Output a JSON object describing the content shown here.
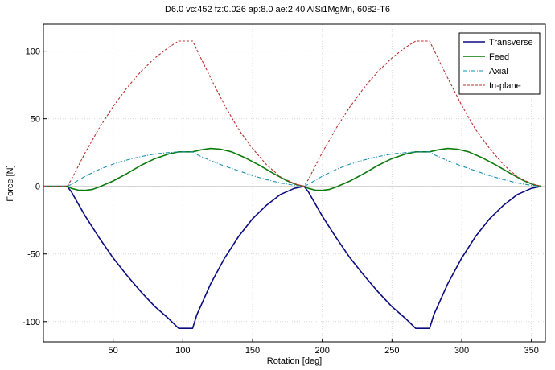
{
  "chart_data": {
    "type": "line",
    "title": "D6.0 vc:452 fz:0.026 ap:8.0 ae:2.40 AlSi1MgMn, 6082-T6",
    "xlabel": "Rotation [deg]",
    "ylabel": "Force [N]",
    "xlim": [
      0,
      360
    ],
    "ylim": [
      -115,
      120
    ],
    "xticks": [
      50,
      100,
      150,
      200,
      250,
      300,
      350
    ],
    "yticks": [
      -100,
      -50,
      0,
      50,
      100
    ],
    "grid": true,
    "legend_position": "top-right",
    "series": [
      {
        "name": "Transverse",
        "color": "#0b0b80",
        "style": "solid",
        "points": [
          [
            0,
            0
          ],
          [
            17,
            0
          ],
          [
            20,
            -4
          ],
          [
            30,
            -22
          ],
          [
            40,
            -38
          ],
          [
            50,
            -53
          ],
          [
            60,
            -66
          ],
          [
            70,
            -78
          ],
          [
            80,
            -89
          ],
          [
            90,
            -98
          ],
          [
            97,
            -105
          ],
          [
            107,
            -105
          ],
          [
            110,
            -95
          ],
          [
            120,
            -72
          ],
          [
            130,
            -53
          ],
          [
            140,
            -37
          ],
          [
            150,
            -24
          ],
          [
            160,
            -14
          ],
          [
            170,
            -6
          ],
          [
            180,
            -1.5
          ],
          [
            187,
            0
          ],
          [
            190,
            -4
          ],
          [
            200,
            -22
          ],
          [
            210,
            -38
          ],
          [
            220,
            -53
          ],
          [
            230,
            -66
          ],
          [
            240,
            -78
          ],
          [
            250,
            -89
          ],
          [
            260,
            -98
          ],
          [
            267,
            -105
          ],
          [
            277,
            -105
          ],
          [
            280,
            -95
          ],
          [
            290,
            -72
          ],
          [
            300,
            -53
          ],
          [
            310,
            -37
          ],
          [
            320,
            -24
          ],
          [
            330,
            -14
          ],
          [
            340,
            -6
          ],
          [
            350,
            -1.5
          ],
          [
            357,
            0
          ]
        ]
      },
      {
        "name": "Feed",
        "color": "#0a7a0a",
        "style": "solid",
        "points": [
          [
            0,
            0
          ],
          [
            17,
            0
          ],
          [
            20,
            -1.5
          ],
          [
            25,
            -2.8
          ],
          [
            30,
            -3
          ],
          [
            35,
            -2.3
          ],
          [
            40,
            -0.5
          ],
          [
            50,
            4
          ],
          [
            60,
            9.5
          ],
          [
            70,
            15.5
          ],
          [
            80,
            20.5
          ],
          [
            90,
            24
          ],
          [
            97,
            25.5
          ],
          [
            107,
            25.5
          ],
          [
            113,
            27
          ],
          [
            120,
            28
          ],
          [
            127,
            27.5
          ],
          [
            135,
            25.5
          ],
          [
            145,
            21
          ],
          [
            155,
            15.5
          ],
          [
            165,
            9.5
          ],
          [
            175,
            4
          ],
          [
            182,
            1
          ],
          [
            187,
            0
          ],
          [
            190,
            -1.5
          ],
          [
            195,
            -2.8
          ],
          [
            200,
            -3
          ],
          [
            205,
            -2.3
          ],
          [
            210,
            -0.5
          ],
          [
            220,
            4
          ],
          [
            230,
            9.5
          ],
          [
            240,
            15.5
          ],
          [
            250,
            20.5
          ],
          [
            260,
            24
          ],
          [
            267,
            25.5
          ],
          [
            277,
            25.5
          ],
          [
            283,
            27
          ],
          [
            290,
            28
          ],
          [
            297,
            27.5
          ],
          [
            305,
            25.5
          ],
          [
            315,
            21
          ],
          [
            325,
            15.5
          ],
          [
            335,
            9.5
          ],
          [
            345,
            4
          ],
          [
            352,
            1
          ],
          [
            357,
            0
          ]
        ]
      },
      {
        "name": "Axial",
        "color": "#1a8fb0",
        "style": "dashdot",
        "points": [
          [
            0,
            0
          ],
          [
            17,
            0
          ],
          [
            20,
            1.5
          ],
          [
            30,
            7.5
          ],
          [
            40,
            12.5
          ],
          [
            50,
            16.5
          ],
          [
            60,
            19.5
          ],
          [
            70,
            22
          ],
          [
            80,
            24
          ],
          [
            90,
            25
          ],
          [
            97,
            25.5
          ],
          [
            107,
            25.5
          ],
          [
            110,
            23.5
          ],
          [
            120,
            19
          ],
          [
            130,
            15
          ],
          [
            140,
            11.5
          ],
          [
            150,
            8
          ],
          [
            160,
            5
          ],
          [
            170,
            2.5
          ],
          [
            180,
            0.8
          ],
          [
            187,
            0
          ],
          [
            190,
            1.5
          ],
          [
            200,
            7.5
          ],
          [
            210,
            12.5
          ],
          [
            220,
            16.5
          ],
          [
            230,
            19.5
          ],
          [
            240,
            22
          ],
          [
            250,
            24
          ],
          [
            260,
            25
          ],
          [
            267,
            25.5
          ],
          [
            277,
            25.5
          ],
          [
            280,
            23.5
          ],
          [
            290,
            19
          ],
          [
            300,
            15
          ],
          [
            310,
            11.5
          ],
          [
            320,
            8
          ],
          [
            330,
            5
          ],
          [
            340,
            2.5
          ],
          [
            350,
            0.8
          ],
          [
            357,
            0
          ]
        ]
      },
      {
        "name": "In-plane",
        "color": "#b83030",
        "style": "dashed",
        "points": [
          [
            0,
            0
          ],
          [
            17,
            0
          ],
          [
            20,
            5
          ],
          [
            30,
            25
          ],
          [
            40,
            43
          ],
          [
            50,
            59
          ],
          [
            60,
            73
          ],
          [
            70,
            85
          ],
          [
            80,
            95
          ],
          [
            90,
            103
          ],
          [
            97,
            107.5
          ],
          [
            107,
            107.5
          ],
          [
            110,
            101
          ],
          [
            120,
            80
          ],
          [
            130,
            60
          ],
          [
            140,
            42
          ],
          [
            150,
            28
          ],
          [
            160,
            16
          ],
          [
            170,
            7
          ],
          [
            180,
            2
          ],
          [
            187,
            0
          ],
          [
            190,
            5
          ],
          [
            200,
            25
          ],
          [
            210,
            43
          ],
          [
            220,
            59
          ],
          [
            230,
            73
          ],
          [
            240,
            85
          ],
          [
            250,
            95
          ],
          [
            260,
            103
          ],
          [
            267,
            107.5
          ],
          [
            277,
            107.5
          ],
          [
            280,
            101
          ],
          [
            290,
            80
          ],
          [
            300,
            60
          ],
          [
            310,
            42
          ],
          [
            320,
            28
          ],
          [
            330,
            16
          ],
          [
            340,
            7
          ],
          [
            350,
            2
          ],
          [
            357,
            0
          ]
        ]
      }
    ]
  }
}
